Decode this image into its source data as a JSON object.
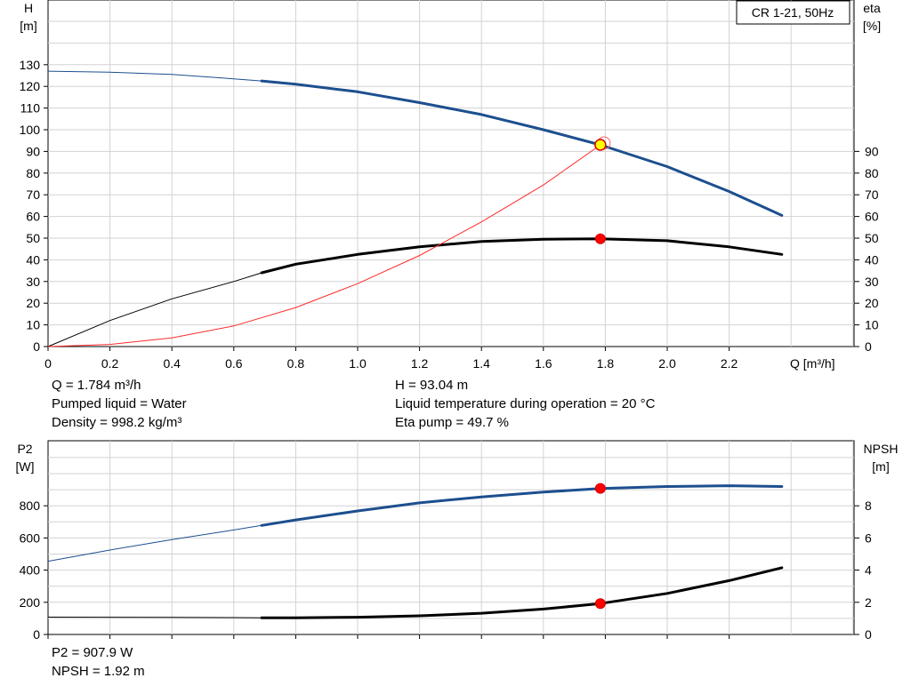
{
  "chart_data": [
    {
      "type": "line",
      "title": "CR 1-21, 50Hz",
      "xlabel": "Q [m³/h]",
      "x_ticks": [
        "0",
        "0.2",
        "0.4",
        "0.6",
        "0.8",
        "1.0",
        "1.2",
        "1.4",
        "1.6",
        "1.8",
        "2.0",
        "2.2"
      ],
      "xlim": [
        0,
        2.6
      ],
      "y_left_label": [
        "H",
        "[m]"
      ],
      "y_left_ticks": [
        "0",
        "10",
        "20",
        "30",
        "40",
        "50",
        "60",
        "70",
        "80",
        "90",
        "100",
        "110",
        "120",
        "130"
      ],
      "y_left_lim": [
        0,
        140
      ],
      "y_right_label": [
        "eta",
        "[%]"
      ],
      "y_right_ticks": [
        "0",
        "10",
        "20",
        "30",
        "40",
        "50",
        "60",
        "70",
        "80",
        "90"
      ],
      "grid": true,
      "series": [
        {
          "axis": "left",
          "color": "#1c4f8f",
          "operating_range": [
            0.69,
            2.37
          ],
          "x": [
            0,
            0.2,
            0.4,
            0.6,
            0.69,
            0.8,
            1.0,
            1.2,
            1.4,
            1.6,
            1.784,
            2.0,
            2.2,
            2.37
          ],
          "y": [
            127,
            126.5,
            125.5,
            123.5,
            122.5,
            121,
            117.5,
            112.5,
            107,
            100,
            93.04,
            83,
            71.5,
            60.5
          ]
        },
        {
          "axis": "right",
          "color": "#000000",
          "operating_range": [
            0.69,
            2.37
          ],
          "x": [
            0,
            0.2,
            0.4,
            0.6,
            0.69,
            0.8,
            1.0,
            1.2,
            1.4,
            1.6,
            1.784,
            2.0,
            2.2,
            2.37
          ],
          "y": [
            0,
            12,
            22,
            30,
            34,
            38,
            42.5,
            46,
            48.5,
            49.5,
            49.7,
            48.8,
            46,
            42.5
          ]
        },
        {
          "axis": "right",
          "color": "#ff2a2a",
          "x": [
            0,
            0.2,
            0.4,
            0.6,
            0.8,
            1.0,
            1.2,
            1.4,
            1.6,
            1.784
          ],
          "y": [
            0,
            1,
            4,
            9.5,
            18,
            29,
            42,
            57.5,
            74.5,
            93
          ]
        }
      ],
      "markers": [
        {
          "x": 1.784,
          "y": 93.04,
          "axis": "left",
          "color": "#ffff00"
        },
        {
          "x": 1.784,
          "y": 49.7,
          "axis": "right",
          "color": "#ff0000"
        }
      ]
    },
    {
      "type": "line",
      "x_ticks": [
        "0",
        "0.2",
        "0.4",
        "0.6",
        "0.8",
        "1.0",
        "1.2",
        "1.4",
        "1.6",
        "1.8",
        "2.0",
        "2.2"
      ],
      "xlim": [
        0,
        2.6
      ],
      "y_left_label": [
        "P2",
        "[W]"
      ],
      "y_left_ticks": [
        "0",
        "200",
        "400",
        "600",
        "800"
      ],
      "y_left_lim": [
        0,
        1000
      ],
      "y_right_label": [
        "NPSH",
        "[m]"
      ],
      "y_right_ticks": [
        "0",
        "2",
        "4",
        "6",
        "8"
      ],
      "y_right_lim": [
        0,
        10
      ],
      "grid": true,
      "series": [
        {
          "axis": "left",
          "color": "#1c4f8f",
          "operating_range": [
            0.69,
            2.37
          ],
          "x": [
            0,
            0.2,
            0.4,
            0.6,
            0.69,
            0.8,
            1.0,
            1.2,
            1.4,
            1.6,
            1.784,
            2.0,
            2.2,
            2.37
          ],
          "y": [
            455,
            525,
            590,
            650,
            678,
            712,
            768,
            818,
            855,
            885,
            907.9,
            920,
            925,
            920
          ]
        },
        {
          "axis": "right",
          "color": "#000000",
          "operating_range": [
            0.69,
            2.37
          ],
          "x": [
            0,
            0.2,
            0.4,
            0.6,
            0.69,
            0.8,
            1.0,
            1.2,
            1.4,
            1.6,
            1.784,
            2.0,
            2.2,
            2.37
          ],
          "y": [
            1.08,
            1.07,
            1.06,
            1.05,
            1.04,
            1.04,
            1.07,
            1.16,
            1.32,
            1.58,
            1.92,
            2.55,
            3.35,
            4.15
          ]
        }
      ],
      "markers": [
        {
          "x": 1.784,
          "y": 907.9,
          "axis": "left",
          "color": "#ff0000"
        },
        {
          "x": 1.784,
          "y": 1.92,
          "axis": "right",
          "color": "#ff0000"
        }
      ]
    }
  ],
  "info_top_left": [
    "Q = 1.784 m³/h",
    "Pumped liquid = Water",
    "Density = 998.2 kg/m³"
  ],
  "info_top_right": [
    "H = 93.04 m",
    "Liquid temperature during operation = 20 °C",
    "Eta pump = 49.7 %"
  ],
  "info_bottom_left": [
    "P2 = 907.9 W",
    "NPSH = 1.92 m"
  ]
}
